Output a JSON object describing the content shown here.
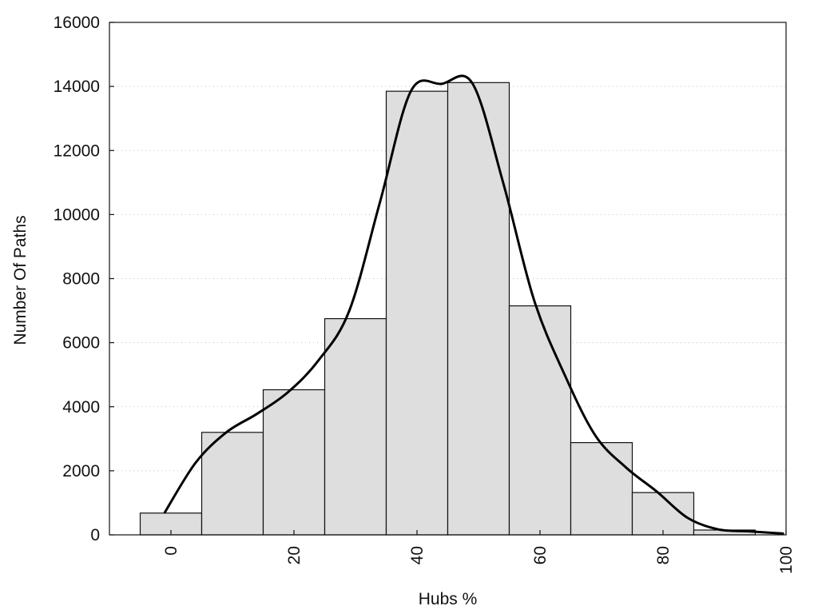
{
  "chart_data": {
    "type": "bar",
    "title": "",
    "xlabel": "Hubs %",
    "ylabel": "Number Of Paths",
    "xlim": [
      -10,
      100
    ],
    "ylim": [
      0,
      16000
    ],
    "x_ticks": [
      "0",
      "20",
      "40",
      "60",
      "80",
      "100"
    ],
    "y_ticks": [
      "0",
      "2000",
      "4000",
      "6000",
      "8000",
      "10000",
      "12000",
      "14000",
      "16000"
    ],
    "grid": "horizontal dotted",
    "legend": "none",
    "bin_width": 10,
    "bins": [
      0,
      10,
      20,
      30,
      40,
      50,
      60,
      70,
      80,
      90
    ],
    "values": [
      680,
      3200,
      4530,
      6750,
      13850,
      14120,
      7150,
      2880,
      1320,
      150
    ],
    "series": [
      {
        "type": "line",
        "smooth": true,
        "x": [
          -1,
          4,
          9,
          14,
          19,
          24,
          29,
          34,
          39,
          44,
          49,
          54,
          59,
          64,
          69,
          74,
          79,
          84,
          89,
          94,
          99.5
        ],
        "y": [
          700,
          2250,
          3200,
          3780,
          4450,
          5450,
          7000,
          10400,
          13850,
          14080,
          14100,
          11000,
          7350,
          5000,
          3100,
          2100,
          1350,
          530,
          170,
          110,
          40
        ]
      }
    ]
  }
}
